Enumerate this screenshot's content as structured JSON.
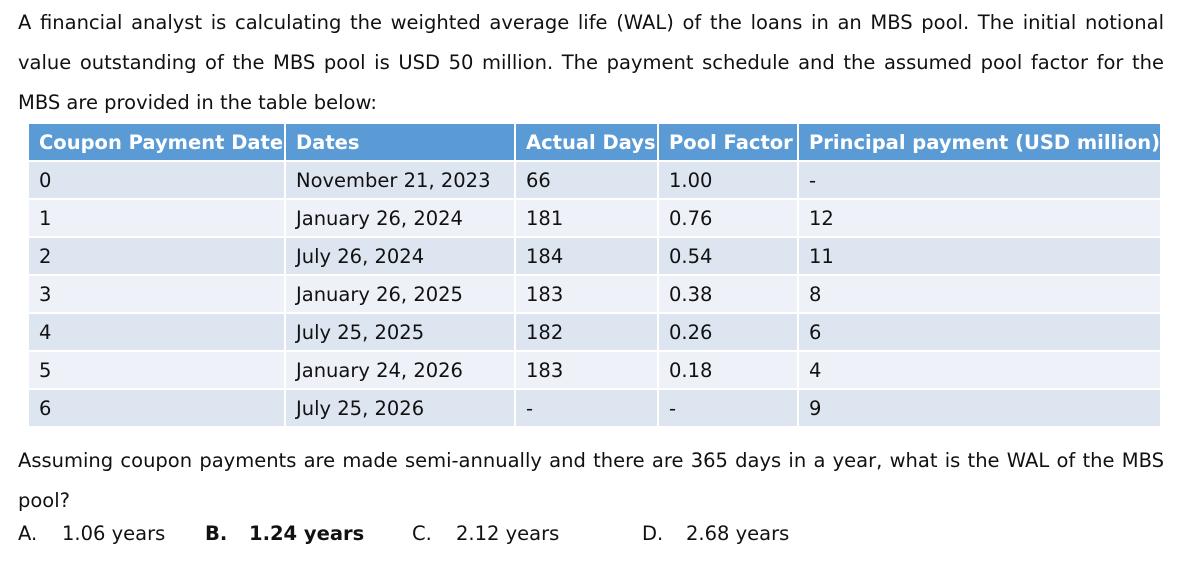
{
  "question": {
    "intro": "A financial analyst is calculating the weighted average life (WAL) of the loans in an MBS pool. The initial notional value outstanding of the MBS pool is USD 50 million. The payment schedule and the assumed pool factor for the MBS are provided in the table below:",
    "prompt": "Assuming coupon payments are made semi-annually and there are 365 days in a year, what is the WAL of the MBS pool?"
  },
  "table": {
    "headers": [
      "Coupon Payment Date",
      "Dates",
      "Actual Days",
      "Pool Factor",
      "Principal payment (USD million)"
    ],
    "rows": [
      [
        "0",
        "November 21, 2023",
        "66",
        "1.00",
        "-"
      ],
      [
        "1",
        "January 26, 2024",
        "181",
        "0.76",
        "12"
      ],
      [
        "2",
        "July 26, 2024",
        "184",
        "0.54",
        "11"
      ],
      [
        "3",
        "January 26, 2025",
        "183",
        "0.38",
        "8"
      ],
      [
        "4",
        "July 25, 2025",
        "182",
        "0.26",
        "6"
      ],
      [
        "5",
        "January 24, 2026",
        "183",
        "0.18",
        "4"
      ],
      [
        "6",
        "July 25, 2026",
        "-",
        "-",
        "9"
      ]
    ]
  },
  "options": [
    {
      "letter": "A.",
      "text": "1.06 years"
    },
    {
      "letter": "B.",
      "text": "1.24 years"
    },
    {
      "letter": "C.",
      "text": "2.12 years"
    },
    {
      "letter": "D.",
      "text": "2.68 years"
    }
  ]
}
